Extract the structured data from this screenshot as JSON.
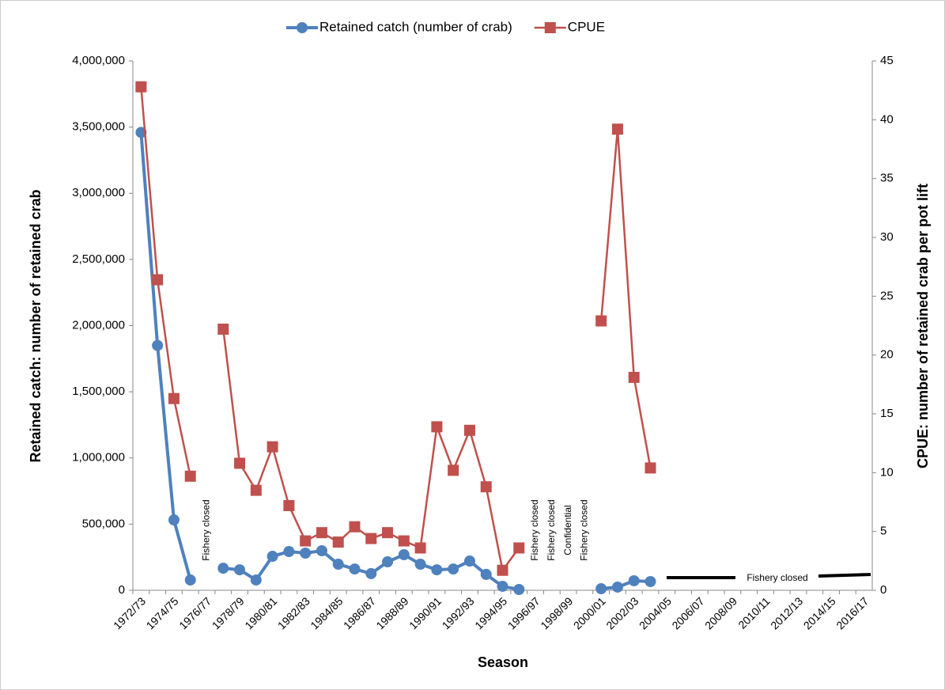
{
  "chart_data": {
    "type": "line",
    "x_label": "Season",
    "y_label": "Retained catch: number of retained crab",
    "y2_label": "CPUE: number of retained crab per pot lift",
    "categories": [
      "1972/73",
      null,
      "1974/75",
      null,
      "1976/77",
      null,
      "1978/79",
      null,
      "1980/81",
      null,
      "1982/83",
      null,
      "1984/85",
      null,
      "1986/87",
      null,
      "1988/89",
      null,
      "1990/91",
      null,
      "1992/93",
      null,
      "1994/95",
      null,
      "1996/97",
      null,
      "1998/99",
      null,
      "2000/01",
      null,
      "2002/03",
      null,
      "2004/05",
      null,
      "2006/07",
      null,
      "2008/09",
      null,
      "2010/11",
      null,
      "2012/13",
      null,
      "2014/15",
      null,
      "2016/17"
    ],
    "series": [
      {
        "name": "Retained catch (number of crab)",
        "color": "#4f81bd",
        "axis": "y",
        "values": [
          3460000,
          1850000,
          532000,
          78000,
          null,
          167000,
          155000,
          78000,
          257000,
          293000,
          281000,
          299000,
          197000,
          161000,
          126000,
          215000,
          269000,
          197000,
          155000,
          161000,
          221000,
          120000,
          30000,
          6000,
          null,
          null,
          null,
          null,
          12000,
          24000,
          72000,
          66000,
          null,
          null,
          null,
          null,
          null,
          null,
          null,
          null,
          null,
          null,
          null,
          null,
          null
        ]
      },
      {
        "name": "CPUE",
        "color": "#c0504d",
        "axis": "y2",
        "values": [
          42.8,
          26.4,
          16.3,
          9.7,
          null,
          22.2,
          10.8,
          8.5,
          12.2,
          7.2,
          4.2,
          4.9,
          4.1,
          5.4,
          4.4,
          4.9,
          4.2,
          3.6,
          13.9,
          10.2,
          13.6,
          8.8,
          1.7,
          3.6,
          null,
          null,
          null,
          null,
          22.9,
          39.2,
          18.1,
          10.4,
          null,
          null,
          null,
          null,
          null,
          null,
          null,
          null,
          null,
          null,
          null,
          null,
          null
        ]
      }
    ],
    "annotations": [
      "Fishery closed",
      "Fishery closed",
      "Fishery closed",
      "Confidential",
      "Fishery closed",
      "Fishery closed"
    ],
    "ylim": [
      0,
      4000000
    ],
    "yticks": [
      0,
      {
        "value": 500000,
        "label": "500,000"
      },
      {
        "value": 1000000,
        "label": "1,000,000"
      },
      {
        "value": 1500000,
        "label": "1,500,000"
      },
      {
        "value": 2000000,
        "label": "2,000,000"
      },
      {
        "value": 2500000,
        "label": "2,500,000"
      },
      {
        "value": 3000000,
        "label": "3,000,000"
      },
      {
        "value": 3500000,
        "label": "3,500,000"
      },
      {
        "value": 4000000,
        "label": "4,000,000"
      }
    ],
    "y2lim": [
      0,
      45
    ],
    "y2ticks": [
      0,
      5,
      10,
      15,
      20,
      25,
      30,
      35,
      40,
      45
    ],
    "legend": "top"
  }
}
